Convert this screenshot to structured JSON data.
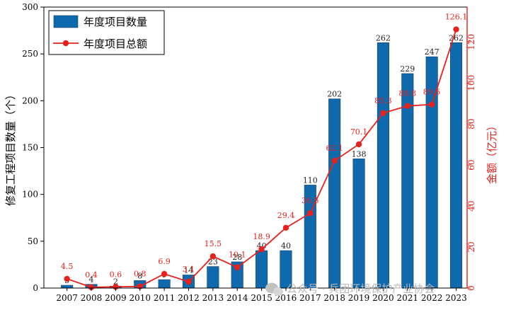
{
  "chart_data": {
    "type": "bar",
    "categories": [
      "2007",
      "2008",
      "2009",
      "2010",
      "2011",
      "2012",
      "2013",
      "2014",
      "2015",
      "2016",
      "2017",
      "2018",
      "2019",
      "2020",
      "2021",
      "2022",
      "2023"
    ],
    "series": [
      {
        "name": "年度项目数量",
        "type": "bar",
        "axis": "left",
        "color": "#0e6aad",
        "values": [
          3,
          4,
          2,
          8,
          9,
          14,
          23,
          28,
          40,
          40,
          110,
          202,
          138,
          262,
          229,
          247,
          262
        ],
        "labels": [
          "3",
          "4",
          "2",
          "8",
          "9",
          "14",
          "23",
          "28",
          "40",
          "40",
          "110",
          "202",
          "138",
          "262",
          "229",
          "247",
          "262"
        ]
      },
      {
        "name": "年度项目总额",
        "type": "line",
        "axis": "right",
        "color": "#e8211d",
        "values": [
          4.5,
          0.4,
          0.6,
          0.8,
          6.9,
          3.1,
          15.5,
          10.1,
          18.9,
          29.4,
          36.5,
          62.1,
          70.1,
          85.3,
          88.8,
          89.5,
          126.1
        ],
        "labels": [
          "4.5",
          "0.4",
          "0.6",
          "0.8",
          "6.9",
          "3.1",
          "15.5",
          "10.1",
          "18.9",
          "29.4",
          "36.5",
          "62.1",
          "70.1",
          "85.3",
          "88.8",
          "89.5",
          "126.1"
        ]
      }
    ],
    "ylabel": "修复工程项目数量（个）",
    "y2label": "金额（亿元）",
    "ylim": [
      0,
      300
    ],
    "y2lim": [
      0,
      137
    ],
    "yticks": [
      0,
      50,
      100,
      150,
      200,
      250,
      300
    ],
    "y2ticks": [
      0,
      20,
      40,
      60,
      80,
      100,
      120
    ],
    "legend_position": "top-left",
    "grid": false
  },
  "watermark": {
    "icon": "wechat-icon",
    "text": "公众号 · 兵团环境保护产业协会"
  }
}
